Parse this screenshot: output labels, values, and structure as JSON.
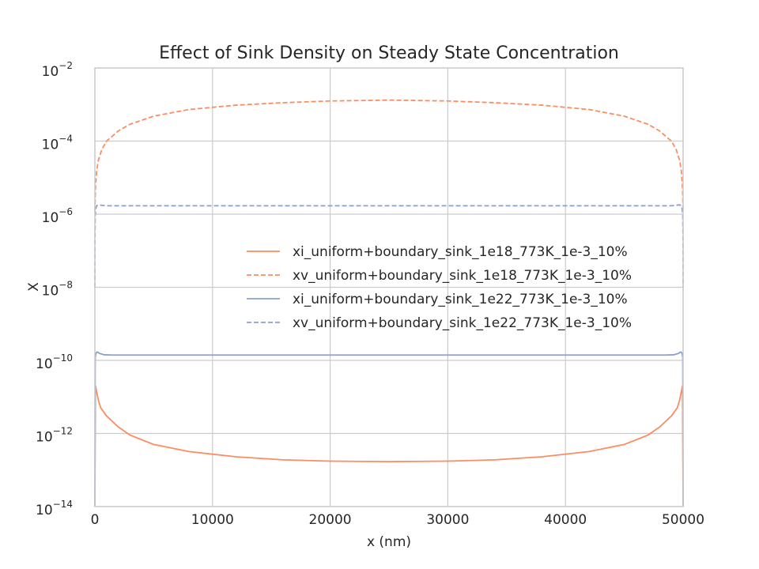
{
  "chart_data": {
    "type": "line",
    "title": "Effect of Sink Density on Steady State Concentration",
    "xlabel": "x (nm)",
    "ylabel": "X",
    "xlim": [
      0,
      50000
    ],
    "ylim": [
      1e-14,
      0.01
    ],
    "yscale": "log",
    "grid": true,
    "legend_position": "center-right",
    "x_ticks": [
      "0",
      "10000",
      "20000",
      "30000",
      "40000",
      "50000"
    ],
    "y_ticks": [
      {
        "base": "10",
        "exp": "−2",
        "value": 0.01
      },
      {
        "base": "10",
        "exp": "−4",
        "value": 0.0001
      },
      {
        "base": "10",
        "exp": "−6",
        "value": 1e-06
      },
      {
        "base": "10",
        "exp": "−8",
        "value": 1e-08
      },
      {
        "base": "10",
        "exp": "−10",
        "value": 1e-10
      },
      {
        "base": "10",
        "exp": "−12",
        "value": 1e-12
      },
      {
        "base": "10",
        "exp": "−14",
        "value": 1e-14
      }
    ],
    "series": [
      {
        "name": "xi_uniform+boundary_sink_1e18_773K_1e-3_10%",
        "color": "#fc8d62",
        "style": "solid",
        "x": [
          0,
          50,
          150,
          300,
          500,
          1000,
          2000,
          3000,
          5000,
          8000,
          12000,
          16000,
          20000,
          25000,
          30000,
          34000,
          38000,
          42000,
          45000,
          47000,
          48000,
          49000,
          49500,
          49700,
          49850,
          49950,
          50000
        ],
        "y": [
          1e-14,
          2e-11,
          1.4e-11,
          8e-12,
          5e-12,
          3e-12,
          1.5e-12,
          9e-13,
          5e-13,
          3.2e-13,
          2.3e-13,
          1.9e-13,
          1.75e-13,
          1.7e-13,
          1.75e-13,
          1.9e-13,
          2.3e-13,
          3.2e-13,
          5e-13,
          9e-13,
          1.5e-12,
          3e-12,
          5e-12,
          8e-12,
          1.4e-11,
          2e-11,
          1e-14
        ]
      },
      {
        "name": "xv_uniform+boundary_sink_1e18_773K_1e-3_10%",
        "color": "#fc8d62",
        "style": "dashed",
        "x": [
          0,
          20,
          60,
          150,
          300,
          600,
          1000,
          2000,
          3000,
          5000,
          8000,
          12000,
          16000,
          20000,
          25000,
          30000,
          34000,
          38000,
          42000,
          45000,
          47000,
          48000,
          49000,
          49400,
          49700,
          49850,
          49940,
          49980,
          50000
        ],
        "y": [
          1.2e-06,
          2e-06,
          6e-06,
          1.5e-05,
          3e-05,
          6e-05,
          0.0001,
          0.00019,
          0.00029,
          0.00048,
          0.00073,
          0.00096,
          0.00112,
          0.00125,
          0.00132,
          0.00125,
          0.00112,
          0.00096,
          0.00073,
          0.00048,
          0.00029,
          0.00019,
          0.0001,
          6e-05,
          3e-05,
          1.5e-05,
          6e-06,
          2e-06,
          1.2e-06
        ]
      },
      {
        "name": "xi_uniform+boundary_sink_1e22_773K_1e-3_10%",
        "color": "#8da0cb",
        "style": "solid",
        "x": [
          0,
          30,
          100,
          200,
          400,
          800,
          1500,
          48500,
          49200,
          49600,
          49800,
          49900,
          49970,
          50000
        ],
        "y": [
          1e-14,
          1.2e-10,
          1.6e-10,
          1.7e-10,
          1.55e-10,
          1.42e-10,
          1.4e-10,
          1.4e-10,
          1.42e-10,
          1.55e-10,
          1.7e-10,
          1.6e-10,
          1.2e-10,
          1e-14
        ]
      },
      {
        "name": "xv_uniform+boundary_sink_1e22_773K_1e-3_10%",
        "color": "#8da0cb",
        "style": "dashed",
        "x": [
          0,
          10,
          30,
          80,
          150,
          300,
          600,
          1000,
          49000,
          49400,
          49700,
          49850,
          49920,
          49970,
          49990,
          50000
        ],
        "y": [
          1e-08,
          2e-07,
          9e-07,
          1.4e-06,
          1.7e-06,
          1.8e-06,
          1.75e-06,
          1.7e-06,
          1.7e-06,
          1.75e-06,
          1.8e-06,
          1.7e-06,
          1.4e-06,
          9e-07,
          2e-07,
          1e-08
        ]
      }
    ]
  }
}
